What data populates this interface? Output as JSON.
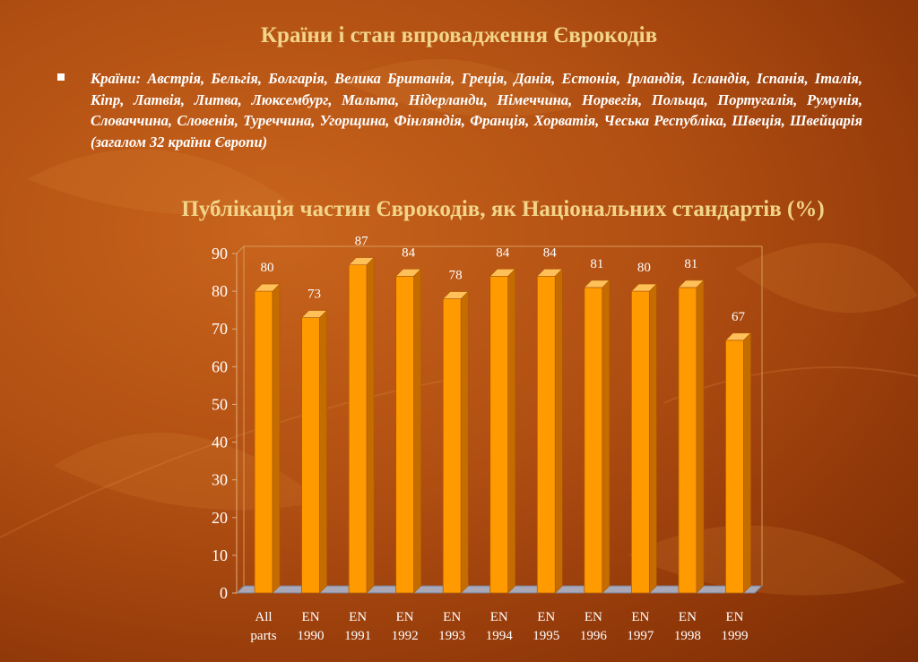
{
  "slide_title": "Країни і стан впровадження Єврокодів",
  "countries_text": "Країни: Австрія, Бельгія, Болгарія, Велика Британія, Греція, Данія, Естонія, Ірландія, Ісландія, Іспанія, Італія, Кіпр, Латвія, Литва, Люксембург, Мальта, Нідерланди, Німеччина, Норвегія, Польща, Португалія, Румунія, Словаччина, Словенія, Туреччина, Угорщина, Фінляндія, Франція, Хорватія, Чеська Республіка, Швеція, Швейцарія (загалом 32 країни Європи)",
  "colors": {
    "bar_front": "#ff9a00",
    "bar_side": "#c46c00",
    "bar_top": "#ffc05a",
    "title": "#f2d58a"
  },
  "chart_data": {
    "type": "bar",
    "title": "Публікація частин Єврокодів, як Національних стандартів (%)",
    "categories": [
      [
        "All",
        "parts"
      ],
      [
        "EN",
        "1990"
      ],
      [
        "EN",
        "1991"
      ],
      [
        "EN",
        "1992"
      ],
      [
        "EN",
        "1993"
      ],
      [
        "EN",
        "1994"
      ],
      [
        "EN",
        "1995"
      ],
      [
        "EN",
        "1996"
      ],
      [
        "EN",
        "1997"
      ],
      [
        "EN",
        "1998"
      ],
      [
        "EN",
        "1999"
      ]
    ],
    "values": [
      80,
      73,
      87,
      84,
      78,
      84,
      84,
      81,
      80,
      81,
      67
    ],
    "ylim": [
      0,
      90
    ],
    "yticks": [
      0,
      10,
      20,
      30,
      40,
      50,
      60,
      70,
      80,
      90
    ],
    "grid": false,
    "style": "3d"
  }
}
